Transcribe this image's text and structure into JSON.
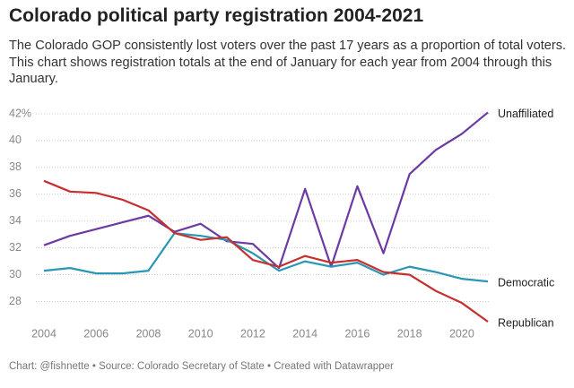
{
  "chart_data": {
    "type": "line",
    "title": "Colorado political party registration 2004-2021",
    "subtitle": "The Colorado GOP consistently lost voters over the past 17 years as a proportion of total voters. This chart shows registration totals at the end of January for each year from 2004 through this January.",
    "footer": "Chart: @fishnette • Source: Colorado Secretary of State • Created with Datawrapper",
    "x": [
      2004,
      2005,
      2006,
      2007,
      2008,
      2009,
      2010,
      2011,
      2012,
      2013,
      2014,
      2015,
      2016,
      2017,
      2018,
      2019,
      2020,
      2021
    ],
    "xlim": [
      2004,
      2021
    ],
    "xticks": [
      2004,
      2006,
      2008,
      2010,
      2012,
      2014,
      2016,
      2018,
      2020
    ],
    "ylim": [
      26.3,
      42.6
    ],
    "yticks": [
      28,
      30,
      32,
      34,
      36,
      38,
      40,
      {
        "value": 42,
        "label": "42%"
      }
    ],
    "grid": true,
    "series": [
      {
        "name": "Unaffiliated",
        "color": "#6d3aa4",
        "values": [
          32.2,
          32.9,
          33.4,
          33.9,
          34.4,
          33.2,
          33.8,
          32.5,
          32.3,
          30.5,
          36.4,
          30.6,
          36.6,
          31.6,
          37.5,
          39.3,
          40.5,
          42.1
        ]
      },
      {
        "name": "Democratic",
        "color": "#2a96b5",
        "values": [
          30.3,
          30.5,
          30.1,
          30.1,
          30.3,
          33.1,
          32.9,
          32.6,
          31.6,
          30.3,
          31.0,
          30.6,
          30.9,
          30.0,
          30.6,
          30.2,
          29.7,
          29.5
        ]
      },
      {
        "name": "Republican",
        "color": "#c62f2e",
        "values": [
          37.0,
          36.2,
          36.1,
          35.6,
          34.8,
          33.1,
          32.6,
          32.8,
          31.1,
          30.6,
          31.4,
          30.9,
          31.1,
          30.2,
          30.0,
          28.8,
          27.9,
          26.5
        ]
      }
    ]
  }
}
